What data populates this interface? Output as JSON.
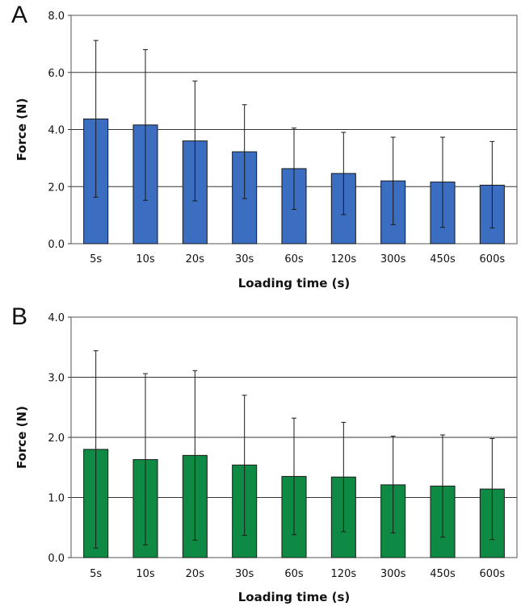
{
  "chart_data": [
    {
      "panel": "A",
      "type": "bar",
      "xlabel": "Loading time (s)",
      "ylabel": "Force (N)",
      "categories": [
        "5s",
        "10s",
        "20s",
        "30s",
        "60s",
        "120s",
        "300s",
        "450s",
        "600s"
      ],
      "values": [
        4.37,
        4.16,
        3.6,
        3.22,
        2.63,
        2.46,
        2.2,
        2.16,
        2.05
      ],
      "error_upper": [
        7.12,
        6.8,
        5.7,
        4.87,
        4.05,
        3.9,
        3.73,
        3.73,
        3.58
      ],
      "error_lower": [
        1.63,
        1.52,
        1.5,
        1.58,
        1.2,
        1.02,
        0.67,
        0.57,
        0.55
      ],
      "ylim": [
        0,
        8
      ],
      "yticks": [
        "0.0",
        "2.0",
        "4.0",
        "6.0",
        "8.0"
      ],
      "ytick_values": [
        0,
        2,
        4,
        6,
        8
      ],
      "gridlines": "horizontal at major ticks",
      "bar_color": "#3b6dc1"
    },
    {
      "panel": "B",
      "type": "bar",
      "xlabel": "Loading time (s)",
      "ylabel": "Force (N)",
      "categories": [
        "5s",
        "10s",
        "20s",
        "30s",
        "60s",
        "120s",
        "300s",
        "450s",
        "600s"
      ],
      "values": [
        1.8,
        1.63,
        1.7,
        1.54,
        1.35,
        1.34,
        1.21,
        1.19,
        1.14
      ],
      "error_upper": [
        3.44,
        3.06,
        3.11,
        2.7,
        2.32,
        2.25,
        2.02,
        2.04,
        1.98
      ],
      "error_lower": [
        0.16,
        0.21,
        0.29,
        0.37,
        0.38,
        0.43,
        0.41,
        0.34,
        0.3
      ],
      "ylim": [
        0,
        4
      ],
      "yticks": [
        "0.0",
        "1.0",
        "2.0",
        "3.0",
        "4.0"
      ],
      "ytick_values": [
        0,
        1,
        2,
        3,
        4
      ],
      "gridlines": "horizontal at major ticks",
      "bar_color": "#0f8a45"
    }
  ]
}
